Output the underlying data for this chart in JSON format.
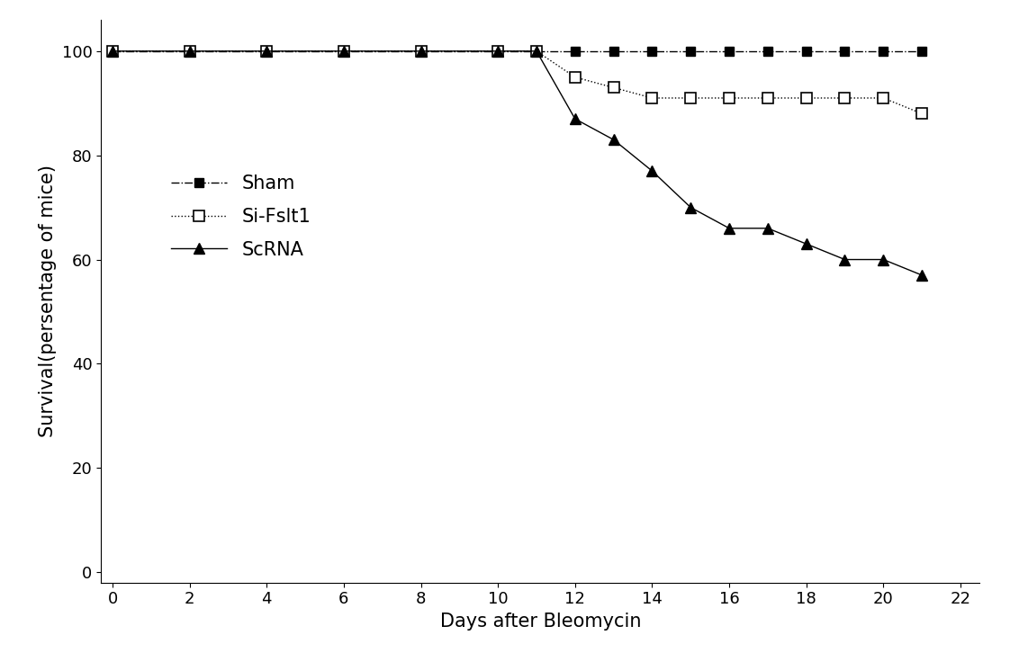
{
  "sham_x": [
    0,
    2,
    4,
    6,
    8,
    10,
    11,
    12,
    13,
    14,
    15,
    16,
    17,
    18,
    19,
    20,
    21
  ],
  "sham_y": [
    100,
    100,
    100,
    100,
    100,
    100,
    100,
    100,
    100,
    100,
    100,
    100,
    100,
    100,
    100,
    100,
    100
  ],
  "sifstl1_x": [
    0,
    2,
    4,
    6,
    8,
    10,
    11,
    12,
    13,
    14,
    15,
    16,
    17,
    18,
    19,
    20,
    21
  ],
  "sifstl1_y": [
    100,
    100,
    100,
    100,
    100,
    100,
    100,
    95,
    93,
    91,
    91,
    91,
    91,
    91,
    91,
    91,
    88
  ],
  "scrna_x": [
    0,
    2,
    4,
    6,
    8,
    10,
    11,
    12,
    13,
    14,
    15,
    16,
    17,
    18,
    19,
    20,
    21
  ],
  "scrna_y": [
    100,
    100,
    100,
    100,
    100,
    100,
    100,
    87,
    83,
    77,
    70,
    66,
    66,
    63,
    60,
    60,
    57
  ],
  "xlabel": "Days after Bleomycin",
  "ylabel": "Survival(persentage of mice)",
  "xlim": [
    -0.3,
    22.5
  ],
  "ylim": [
    -2,
    106
  ],
  "xticks": [
    0,
    2,
    4,
    6,
    8,
    10,
    12,
    14,
    16,
    18,
    20,
    22
  ],
  "yticks": [
    0,
    20,
    40,
    60,
    80,
    100
  ],
  "legend_labels": [
    "Sham",
    "Si-Fslt1",
    "ScRNA"
  ],
  "line_color": "#000000",
  "bg_color": "#ffffff",
  "fontsize_label": 15,
  "fontsize_tick": 13,
  "fontsize_legend": 15
}
